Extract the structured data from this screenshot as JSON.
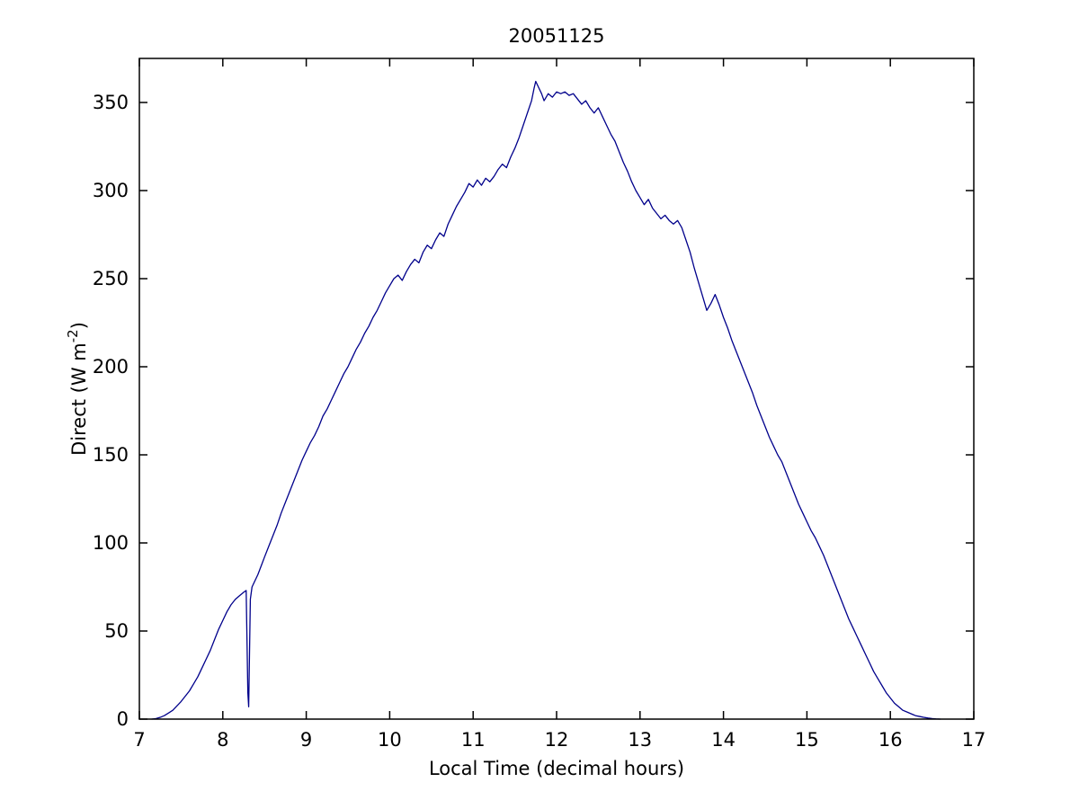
{
  "chart_data": {
    "type": "line",
    "title": "20051125",
    "xlabel": "Local Time (decimal hours)",
    "ylabel": {
      "text": "Direct (W m",
      "sup": "-2",
      "after": ")"
    },
    "xlim": [
      7,
      17
    ],
    "ylim": [
      0,
      375
    ],
    "xticks": [
      7,
      8,
      9,
      10,
      11,
      12,
      13,
      14,
      15,
      16,
      17
    ],
    "yticks": [
      0,
      50,
      100,
      150,
      200,
      250,
      300,
      350
    ],
    "grid": false,
    "legend": null,
    "line_color": "#00008B",
    "axis_color": "#000000",
    "background_color": "#ffffff",
    "points": [
      [
        7.15,
        0
      ],
      [
        7.2,
        0.3
      ],
      [
        7.25,
        1
      ],
      [
        7.3,
        2
      ],
      [
        7.35,
        3.5
      ],
      [
        7.4,
        5
      ],
      [
        7.45,
        7.5
      ],
      [
        7.5,
        10
      ],
      [
        7.55,
        13
      ],
      [
        7.6,
        16
      ],
      [
        7.65,
        20
      ],
      [
        7.7,
        24
      ],
      [
        7.75,
        29
      ],
      [
        7.8,
        34
      ],
      [
        7.85,
        39
      ],
      [
        7.9,
        45
      ],
      [
        7.95,
        51
      ],
      [
        8.0,
        56
      ],
      [
        8.05,
        61
      ],
      [
        8.1,
        65
      ],
      [
        8.15,
        68
      ],
      [
        8.2,
        70
      ],
      [
        8.25,
        72
      ],
      [
        8.28,
        73
      ],
      [
        8.3,
        15
      ],
      [
        8.31,
        7
      ],
      [
        8.33,
        68
      ],
      [
        8.35,
        75
      ],
      [
        8.38,
        78
      ],
      [
        8.42,
        82
      ],
      [
        8.46,
        87
      ],
      [
        8.5,
        92
      ],
      [
        8.55,
        98
      ],
      [
        8.6,
        104
      ],
      [
        8.65,
        110
      ],
      [
        8.7,
        117
      ],
      [
        8.75,
        123
      ],
      [
        8.8,
        129
      ],
      [
        8.85,
        135
      ],
      [
        8.9,
        141
      ],
      [
        8.95,
        147
      ],
      [
        9.0,
        152
      ],
      [
        9.05,
        157
      ],
      [
        9.1,
        161
      ],
      [
        9.15,
        166
      ],
      [
        9.2,
        172
      ],
      [
        9.25,
        176
      ],
      [
        9.3,
        181
      ],
      [
        9.35,
        186
      ],
      [
        9.4,
        191
      ],
      [
        9.45,
        196
      ],
      [
        9.5,
        200
      ],
      [
        9.55,
        205
      ],
      [
        9.6,
        210
      ],
      [
        9.65,
        214
      ],
      [
        9.7,
        219
      ],
      [
        9.75,
        223
      ],
      [
        9.8,
        228
      ],
      [
        9.85,
        232
      ],
      [
        9.9,
        237
      ],
      [
        9.95,
        242
      ],
      [
        10.0,
        246
      ],
      [
        10.05,
        250
      ],
      [
        10.1,
        252
      ],
      [
        10.15,
        249
      ],
      [
        10.2,
        254
      ],
      [
        10.25,
        258
      ],
      [
        10.3,
        261
      ],
      [
        10.35,
        259
      ],
      [
        10.4,
        265
      ],
      [
        10.45,
        269
      ],
      [
        10.5,
        267
      ],
      [
        10.55,
        272
      ],
      [
        10.6,
        276
      ],
      [
        10.65,
        274
      ],
      [
        10.7,
        281
      ],
      [
        10.75,
        286
      ],
      [
        10.8,
        291
      ],
      [
        10.85,
        295
      ],
      [
        10.9,
        299
      ],
      [
        10.95,
        304
      ],
      [
        11.0,
        302
      ],
      [
        11.05,
        306
      ],
      [
        11.1,
        303
      ],
      [
        11.15,
        307
      ],
      [
        11.2,
        305
      ],
      [
        11.25,
        308
      ],
      [
        11.3,
        312
      ],
      [
        11.35,
        315
      ],
      [
        11.4,
        313
      ],
      [
        11.45,
        319
      ],
      [
        11.5,
        324
      ],
      [
        11.55,
        330
      ],
      [
        11.6,
        337
      ],
      [
        11.65,
        344
      ],
      [
        11.7,
        351
      ],
      [
        11.73,
        358
      ],
      [
        11.75,
        362
      ],
      [
        11.78,
        359
      ],
      [
        11.82,
        355
      ],
      [
        11.85,
        351
      ],
      [
        11.9,
        355
      ],
      [
        11.95,
        353
      ],
      [
        12.0,
        356
      ],
      [
        12.05,
        355
      ],
      [
        12.1,
        356
      ],
      [
        12.15,
        354
      ],
      [
        12.2,
        355
      ],
      [
        12.25,
        352
      ],
      [
        12.3,
        349
      ],
      [
        12.35,
        351
      ],
      [
        12.4,
        347
      ],
      [
        12.45,
        344
      ],
      [
        12.5,
        347
      ],
      [
        12.55,
        342
      ],
      [
        12.6,
        337
      ],
      [
        12.65,
        332
      ],
      [
        12.7,
        328
      ],
      [
        12.75,
        322
      ],
      [
        12.8,
        316
      ],
      [
        12.85,
        311
      ],
      [
        12.9,
        305
      ],
      [
        12.95,
        300
      ],
      [
        13.0,
        296
      ],
      [
        13.05,
        292
      ],
      [
        13.1,
        295
      ],
      [
        13.15,
        290
      ],
      [
        13.2,
        287
      ],
      [
        13.25,
        284
      ],
      [
        13.3,
        286
      ],
      [
        13.35,
        283
      ],
      [
        13.4,
        281
      ],
      [
        13.45,
        283
      ],
      [
        13.5,
        279
      ],
      [
        13.55,
        272
      ],
      [
        13.6,
        265
      ],
      [
        13.65,
        256
      ],
      [
        13.7,
        248
      ],
      [
        13.75,
        240
      ],
      [
        13.8,
        232
      ],
      [
        13.85,
        236
      ],
      [
        13.9,
        241
      ],
      [
        13.95,
        235
      ],
      [
        14.0,
        228
      ],
      [
        14.05,
        222
      ],
      [
        14.1,
        215
      ],
      [
        14.15,
        209
      ],
      [
        14.2,
        203
      ],
      [
        14.25,
        197
      ],
      [
        14.3,
        191
      ],
      [
        14.35,
        185
      ],
      [
        14.4,
        178
      ],
      [
        14.45,
        172
      ],
      [
        14.5,
        166
      ],
      [
        14.55,
        160
      ],
      [
        14.6,
        155
      ],
      [
        14.65,
        150
      ],
      [
        14.7,
        146
      ],
      [
        14.75,
        140
      ],
      [
        14.8,
        134
      ],
      [
        14.85,
        128
      ],
      [
        14.9,
        122
      ],
      [
        14.95,
        117
      ],
      [
        15.0,
        112
      ],
      [
        15.05,
        107
      ],
      [
        15.1,
        103
      ],
      [
        15.15,
        98
      ],
      [
        15.2,
        93
      ],
      [
        15.25,
        87
      ],
      [
        15.3,
        81
      ],
      [
        15.35,
        75
      ],
      [
        15.4,
        69
      ],
      [
        15.45,
        63
      ],
      [
        15.5,
        57
      ],
      [
        15.55,
        52
      ],
      [
        15.6,
        47
      ],
      [
        15.65,
        42
      ],
      [
        15.7,
        37
      ],
      [
        15.75,
        32
      ],
      [
        15.8,
        27
      ],
      [
        15.85,
        23
      ],
      [
        15.9,
        19
      ],
      [
        15.95,
        15
      ],
      [
        16.0,
        12
      ],
      [
        16.05,
        9
      ],
      [
        16.1,
        7
      ],
      [
        16.15,
        5
      ],
      [
        16.2,
        4
      ],
      [
        16.25,
        3
      ],
      [
        16.3,
        2
      ],
      [
        16.35,
        1.5
      ],
      [
        16.4,
        1
      ],
      [
        16.45,
        0.6
      ],
      [
        16.5,
        0.3
      ],
      [
        16.55,
        0.1
      ],
      [
        16.6,
        0
      ]
    ]
  }
}
